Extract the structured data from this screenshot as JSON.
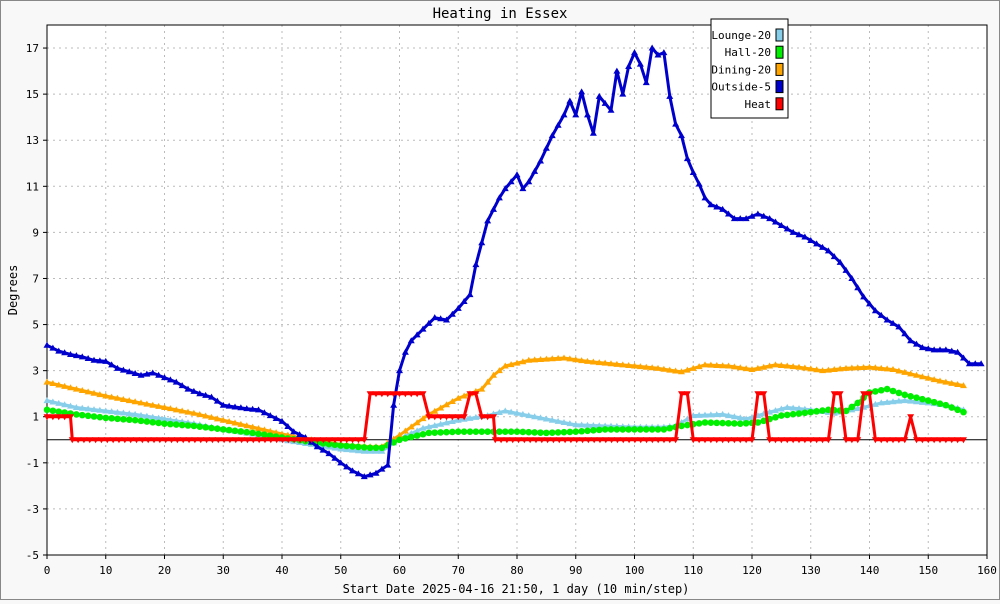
{
  "chart_data": {
    "type": "line",
    "title": "Heating in Essex",
    "xlabel": "Start Date 2025-04-16 21:50, 1 day (10 min/step)",
    "ylabel": "Degrees",
    "xlim": [
      0,
      160
    ],
    "ylim": [
      -5,
      18
    ],
    "x_ticks": [
      0,
      10,
      20,
      30,
      40,
      50,
      60,
      70,
      80,
      90,
      100,
      110,
      120,
      130,
      140,
      150,
      160
    ],
    "y_ticks": [
      -5,
      -3,
      -1,
      1,
      3,
      5,
      7,
      9,
      11,
      13,
      15,
      17
    ],
    "grid": true,
    "legend_position": "top-right",
    "series": [
      {
        "name": "Lounge-20",
        "color": "#87ceeb",
        "marker": "triangle",
        "points": [
          [
            0,
            1.7
          ],
          [
            5,
            1.4
          ],
          [
            10,
            1.25
          ],
          [
            15,
            1.1
          ],
          [
            20,
            0.9
          ],
          [
            25,
            0.7
          ],
          [
            30,
            0.45
          ],
          [
            35,
            0.25
          ],
          [
            40,
            0
          ],
          [
            45,
            -0.2
          ],
          [
            50,
            -0.4
          ],
          [
            54,
            -0.5
          ],
          [
            57,
            -0.5
          ],
          [
            60,
            0.05
          ],
          [
            64,
            0.5
          ],
          [
            70,
            0.85
          ],
          [
            75,
            1.05
          ],
          [
            78,
            1.25
          ],
          [
            82,
            1.05
          ],
          [
            90,
            0.65
          ],
          [
            95,
            0.6
          ],
          [
            100,
            0.55
          ],
          [
            105,
            0.55
          ],
          [
            107,
            0.6
          ],
          [
            110,
            1.05
          ],
          [
            115,
            1.1
          ],
          [
            119,
            0.9
          ],
          [
            123,
            1.2
          ],
          [
            126,
            1.4
          ],
          [
            130,
            1.3
          ],
          [
            134,
            1.15
          ],
          [
            138,
            1.35
          ],
          [
            142,
            1.6
          ],
          [
            146,
            1.7
          ],
          [
            150,
            1.6
          ],
          [
            153,
            1.5
          ],
          [
            156,
            1.3
          ]
        ]
      },
      {
        "name": "Hall-20",
        "color": "#00ee00",
        "marker": "circle",
        "points": [
          [
            0,
            1.3
          ],
          [
            5,
            1.1
          ],
          [
            10,
            0.95
          ],
          [
            15,
            0.85
          ],
          [
            20,
            0.7
          ],
          [
            25,
            0.6
          ],
          [
            30,
            0.45
          ],
          [
            35,
            0.3
          ],
          [
            40,
            0.1
          ],
          [
            45,
            -0.1
          ],
          [
            50,
            -0.25
          ],
          [
            55,
            -0.35
          ],
          [
            57,
            -0.35
          ],
          [
            60,
            0
          ],
          [
            65,
            0.3
          ],
          [
            70,
            0.35
          ],
          [
            75,
            0.35
          ],
          [
            80,
            0.35
          ],
          [
            85,
            0.3
          ],
          [
            90,
            0.35
          ],
          [
            95,
            0.45
          ],
          [
            100,
            0.45
          ],
          [
            105,
            0.45
          ],
          [
            108,
            0.6
          ],
          [
            112,
            0.75
          ],
          [
            118,
            0.7
          ],
          [
            121,
            0.75
          ],
          [
            125,
            1.05
          ],
          [
            130,
            1.2
          ],
          [
            133,
            1.3
          ],
          [
            136,
            1.25
          ],
          [
            138,
            1.6
          ],
          [
            140,
            2.05
          ],
          [
            143,
            2.2
          ],
          [
            146,
            1.95
          ],
          [
            150,
            1.7
          ],
          [
            153,
            1.5
          ],
          [
            156,
            1.2
          ]
        ]
      },
      {
        "name": "Dining-20",
        "color": "#ffa500",
        "marker": "triangle",
        "points": [
          [
            0,
            2.5
          ],
          [
            5,
            2.2
          ],
          [
            10,
            1.9
          ],
          [
            15,
            1.65
          ],
          [
            20,
            1.4
          ],
          [
            25,
            1.15
          ],
          [
            30,
            0.85
          ],
          [
            35,
            0.55
          ],
          [
            40,
            0.25
          ],
          [
            45,
            0
          ],
          [
            50,
            -0.2
          ],
          [
            55,
            -0.3
          ],
          [
            57,
            -0.3
          ],
          [
            60,
            0.2
          ],
          [
            65,
            1.1
          ],
          [
            70,
            1.8
          ],
          [
            74,
            2.2
          ],
          [
            76,
            2.8
          ],
          [
            78,
            3.2
          ],
          [
            82,
            3.45
          ],
          [
            88,
            3.55
          ],
          [
            92,
            3.4
          ],
          [
            96,
            3.3
          ],
          [
            100,
            3.2
          ],
          [
            104,
            3.1
          ],
          [
            108,
            2.95
          ],
          [
            112,
            3.25
          ],
          [
            116,
            3.2
          ],
          [
            120,
            3.05
          ],
          [
            124,
            3.25
          ],
          [
            128,
            3.15
          ],
          [
            132,
            3.0
          ],
          [
            136,
            3.1
          ],
          [
            140,
            3.15
          ],
          [
            144,
            3.05
          ],
          [
            148,
            2.8
          ],
          [
            152,
            2.55
          ],
          [
            156,
            2.35
          ]
        ]
      },
      {
        "name": "Outside-5",
        "color": "#0000cd",
        "marker": "triangle",
        "points": [
          [
            0,
            4.1
          ],
          [
            2,
            3.85
          ],
          [
            4,
            3.7
          ],
          [
            6,
            3.6
          ],
          [
            8,
            3.45
          ],
          [
            10,
            3.4
          ],
          [
            12,
            3.1
          ],
          [
            14,
            2.95
          ],
          [
            16,
            2.8
          ],
          [
            18,
            2.9
          ],
          [
            20,
            2.7
          ],
          [
            22,
            2.5
          ],
          [
            24,
            2.2
          ],
          [
            26,
            2.0
          ],
          [
            28,
            1.85
          ],
          [
            30,
            1.5
          ],
          [
            34,
            1.35
          ],
          [
            36,
            1.3
          ],
          [
            38,
            1.05
          ],
          [
            40,
            0.8
          ],
          [
            42,
            0.35
          ],
          [
            44,
            0.1
          ],
          [
            46,
            -0.3
          ],
          [
            48,
            -0.6
          ],
          [
            50,
            -1.0
          ],
          [
            52,
            -1.35
          ],
          [
            54,
            -1.6
          ],
          [
            56,
            -1.45
          ],
          [
            58,
            -1.1
          ],
          [
            59,
            1.5
          ],
          [
            60,
            3.0
          ],
          [
            61,
            3.8
          ],
          [
            62,
            4.3
          ],
          [
            64,
            4.8
          ],
          [
            66,
            5.3
          ],
          [
            68,
            5.2
          ],
          [
            70,
            5.7
          ],
          [
            72,
            6.3
          ],
          [
            73,
            7.6
          ],
          [
            75,
            9.5
          ],
          [
            77,
            10.5
          ],
          [
            78,
            10.9
          ],
          [
            80,
            11.5
          ],
          [
            81,
            10.9
          ],
          [
            82,
            11.2
          ],
          [
            84,
            12.1
          ],
          [
            86,
            13.2
          ],
          [
            88,
            14.1
          ],
          [
            89,
            14.7
          ],
          [
            90,
            14.1
          ],
          [
            91,
            15.1
          ],
          [
            92,
            14.1
          ],
          [
            93,
            13.3
          ],
          [
            94,
            14.9
          ],
          [
            95,
            14.6
          ],
          [
            96,
            14.3
          ],
          [
            97,
            16.0
          ],
          [
            98,
            15.0
          ],
          [
            99,
            16.2
          ],
          [
            100,
            16.8
          ],
          [
            101,
            16.3
          ],
          [
            102,
            15.5
          ],
          [
            103,
            17.0
          ],
          [
            104,
            16.7
          ],
          [
            105,
            16.8
          ],
          [
            106,
            14.9
          ],
          [
            107,
            13.7
          ],
          [
            108,
            13.2
          ],
          [
            109,
            12.2
          ],
          [
            110,
            11.6
          ],
          [
            111,
            11.1
          ],
          [
            112,
            10.5
          ],
          [
            113,
            10.2
          ],
          [
            115,
            10.0
          ],
          [
            117,
            9.6
          ],
          [
            119,
            9.6
          ],
          [
            121,
            9.8
          ],
          [
            123,
            9.6
          ],
          [
            125,
            9.3
          ],
          [
            127,
            9.0
          ],
          [
            129,
            8.8
          ],
          [
            131,
            8.5
          ],
          [
            133,
            8.2
          ],
          [
            135,
            7.7
          ],
          [
            137,
            7.0
          ],
          [
            139,
            6.2
          ],
          [
            141,
            5.6
          ],
          [
            143,
            5.2
          ],
          [
            145,
            4.9
          ],
          [
            147,
            4.3
          ],
          [
            149,
            4.0
          ],
          [
            151,
            3.9
          ],
          [
            153,
            3.9
          ],
          [
            155,
            3.8
          ],
          [
            157,
            3.3
          ],
          [
            159,
            3.3
          ]
        ]
      },
      {
        "name": "Heat",
        "color": "#ff0000",
        "marker": "triangle-down",
        "points": [
          [
            0,
            1
          ],
          [
            4,
            1
          ],
          [
            4.3,
            0
          ],
          [
            54,
            0
          ],
          [
            55,
            2
          ],
          [
            64,
            2
          ],
          [
            65,
            1
          ],
          [
            71,
            1
          ],
          [
            72,
            2
          ],
          [
            73,
            2
          ],
          [
            74,
            1
          ],
          [
            76,
            1
          ],
          [
            76.3,
            0
          ],
          [
            107,
            0
          ],
          [
            108,
            2
          ],
          [
            109,
            2
          ],
          [
            110,
            0
          ],
          [
            120,
            0
          ],
          [
            121,
            2
          ],
          [
            122,
            2
          ],
          [
            123,
            0
          ],
          [
            133,
            0
          ],
          [
            134,
            2
          ],
          [
            135,
            2
          ],
          [
            136,
            0
          ],
          [
            138,
            0
          ],
          [
            139,
            2
          ],
          [
            140,
            2
          ],
          [
            141,
            0
          ],
          [
            146,
            0
          ],
          [
            147,
            1
          ],
          [
            148,
            0
          ],
          [
            156,
            0
          ]
        ]
      }
    ]
  }
}
